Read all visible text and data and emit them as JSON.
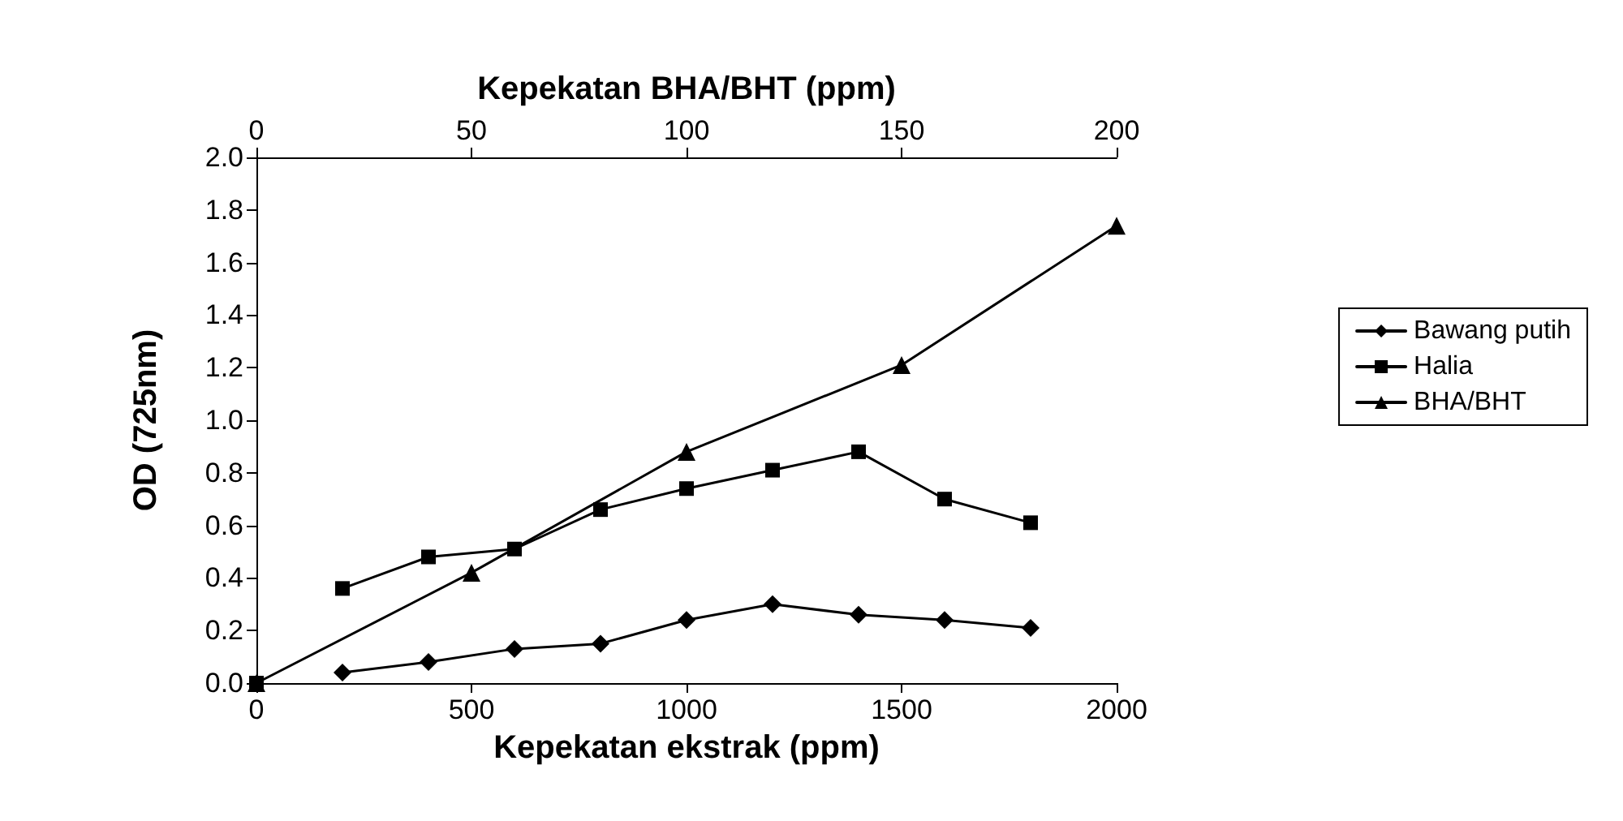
{
  "chart_data": {
    "type": "line",
    "xlabel": "Kepekatan ekstrak (ppm)",
    "ylabel": "OD (725nm)",
    "x2label": "Kepekatan BHA/BHT (ppm)",
    "xlim": [
      0,
      2000
    ],
    "xticks": [
      0,
      500,
      1000,
      1500,
      2000
    ],
    "x2lim": [
      0,
      200
    ],
    "x2ticks": [
      0,
      50,
      100,
      150,
      200
    ],
    "ylim": [
      0,
      2
    ],
    "yticks": [
      {
        "value": 0,
        "label": "0.0"
      },
      {
        "value": 0.2,
        "label": "0.2"
      },
      {
        "value": 0.4,
        "label": "0.4"
      },
      {
        "value": 0.6,
        "label": "0.6"
      },
      {
        "value": 0.8,
        "label": "0.8"
      },
      {
        "value": 1,
        "label": "1.0"
      },
      {
        "value": 1.2,
        "label": "1.2"
      },
      {
        "value": 1.4,
        "label": "1.4"
      },
      {
        "value": 1.6,
        "label": "1.6"
      },
      {
        "value": 1.8,
        "label": "1.8"
      },
      {
        "value": 2,
        "label": "2.0"
      }
    ],
    "grid": false,
    "legend": "right",
    "line_style": "solid",
    "series": [
      {
        "name": "Bawang putih",
        "color": "#000000",
        "marker": "diamond",
        "x": [
          200,
          400,
          600,
          800,
          1000,
          1200,
          1400,
          1600,
          1800
        ],
        "values": [
          0.04,
          0.08,
          0.13,
          0.15,
          0.24,
          0.3,
          0.26,
          0.24,
          0.21
        ]
      },
      {
        "name": "Halia",
        "color": "#000000",
        "marker": "square",
        "x": [
          0,
          100,
          200,
          400,
          600,
          800,
          1000,
          1200,
          1400,
          1600,
          1800
        ],
        "values": [
          0,
          null,
          0.36,
          0.48,
          0.51,
          0.66,
          0.74,
          0.81,
          0.88,
          0.7,
          0.61
        ]
      },
      {
        "name": "BHA/BHT",
        "color": "#000000",
        "marker": "triangle",
        "axis": "x2",
        "x": [
          0,
          50,
          100,
          150,
          200
        ],
        "values": [
          0,
          0.42,
          0.88,
          1.21,
          1.74
        ]
      }
    ]
  }
}
